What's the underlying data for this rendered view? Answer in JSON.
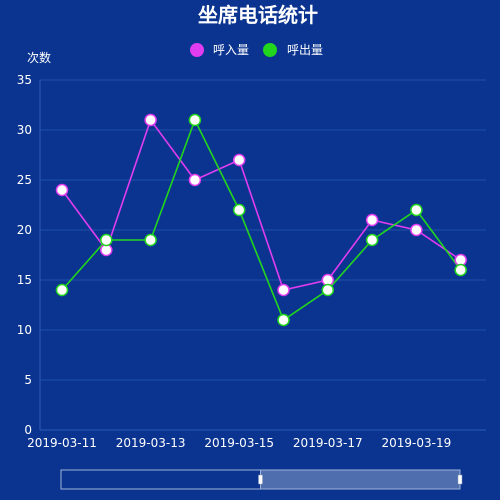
{
  "chart_data": {
    "type": "line",
    "title": "坐席电话统计",
    "ylabel": "次数",
    "xlabel": "",
    "x": [
      "2019-03-11",
      "2019-03-12",
      "2019-03-13",
      "2019-03-14",
      "2019-03-15",
      "2019-03-16",
      "2019-03-17",
      "2019-03-18",
      "2019-03-19",
      "2019-03-20"
    ],
    "x_tick_labels": [
      "2019-03-11",
      "2019-03-13",
      "2019-03-15",
      "2019-03-17",
      "2019-03-19"
    ],
    "ylim": [
      0,
      35
    ],
    "yticks": [
      0,
      5,
      10,
      15,
      20,
      25,
      30,
      35
    ],
    "grid": true,
    "legend": "top-center",
    "series": [
      {
        "name": "呼入量",
        "color": "#e03cf0",
        "values": [
          24,
          18,
          31,
          25,
          27,
          14,
          15,
          21,
          20,
          17
        ]
      },
      {
        "name": "呼出量",
        "color": "#22d61e",
        "values": [
          14,
          19,
          19,
          31,
          22,
          11,
          14,
          19,
          22,
          16
        ]
      }
    ],
    "data_zoom": {
      "start_fraction": 0.0,
      "end_fraction": 0.5
    }
  },
  "colors": {
    "background": "#0b3490",
    "grid": "#1f4fa8",
    "axis": "#2a5cb8",
    "text": "#ffffff",
    "marker_fill": "#ffffff",
    "zoom_fill": "#5a79b3",
    "zoom_border": "#9fb3d9"
  }
}
